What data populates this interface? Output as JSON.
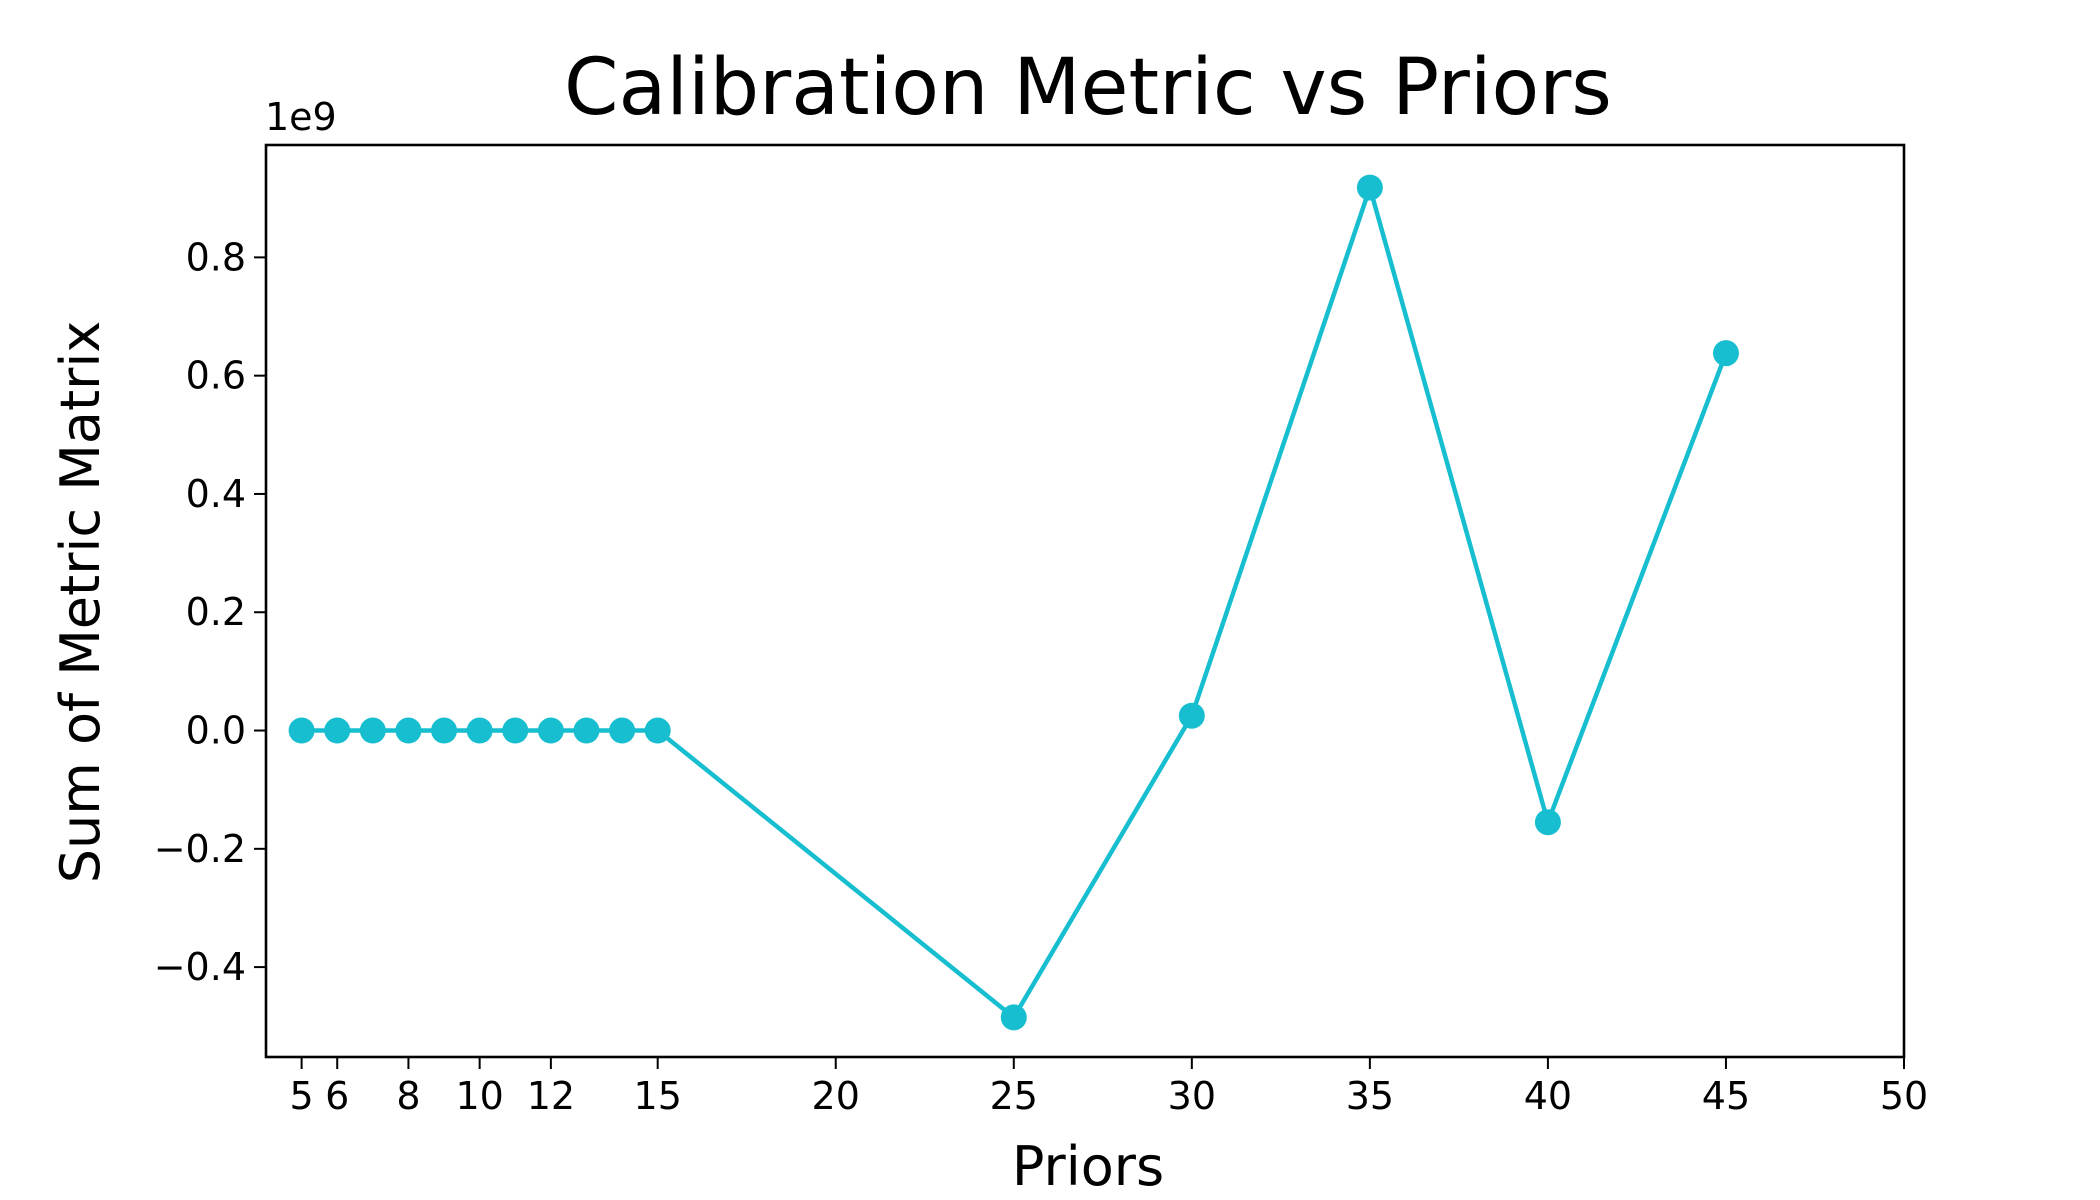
{
  "chart_data": {
    "type": "line",
    "title": "Calibration Metric vs Priors",
    "xlabel": "Priors",
    "ylabel": "Sum of Metric Matrix",
    "y_offset_label": "1e9",
    "y_scale_factor": 1000000000,
    "xlim": [
      4.0,
      50
    ],
    "ylim": [
      -0.552,
      0.99
    ],
    "x_ticks": [
      5,
      6,
      8,
      10,
      12,
      15,
      20,
      25,
      30,
      35,
      40,
      45,
      50
    ],
    "y_ticks": [
      -0.4,
      -0.2,
      0.0,
      0.2,
      0.4,
      0.6,
      0.8
    ],
    "y_tick_labels": [
      "−0.4",
      "−0.2",
      "0.0",
      "0.2",
      "0.4",
      "0.6",
      "0.8"
    ],
    "grid": false,
    "series": [
      {
        "color": "#17becf",
        "marker": "circle",
        "x": [
          5,
          6,
          7,
          8,
          9,
          10,
          11,
          12,
          13,
          14,
          15,
          25,
          30,
          35,
          40,
          45
        ],
        "y": [
          0.0,
          0.0,
          0.0,
          0.0,
          0.0,
          0.0,
          0.0,
          0.0,
          0.0,
          0.0,
          0.0,
          -0.485,
          0.025,
          0.918,
          -0.155,
          0.638
        ]
      }
    ]
  }
}
